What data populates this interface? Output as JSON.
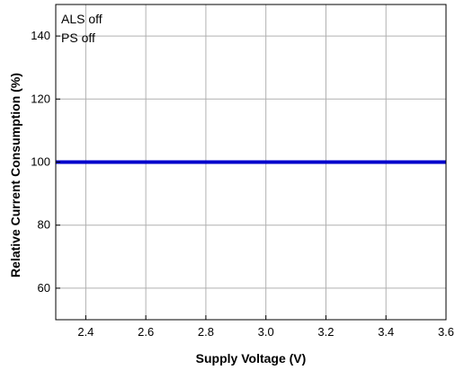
{
  "chart_data": {
    "type": "line",
    "title": "",
    "xlabel": "Supply Voltage (V)",
    "ylabel": "Relative Current Consumption (%)",
    "xlim": [
      2.3,
      3.6
    ],
    "ylim": [
      50,
      150
    ],
    "x_ticks": [
      2.4,
      2.6,
      2.8,
      3.0,
      3.2,
      3.4,
      3.6
    ],
    "x_tick_labels": [
      "2.4",
      "2.6",
      "2.8",
      "3.0",
      "3.2",
      "3.4",
      "3.6"
    ],
    "y_ticks": [
      60,
      80,
      100,
      120,
      140
    ],
    "y_tick_labels": [
      "60",
      "80",
      "100",
      "120",
      "140"
    ],
    "grid": true,
    "annotations": [
      "ALS off",
      "PS off"
    ],
    "series": [
      {
        "color": "#0000cc",
        "x": [
          2.3,
          3.6
        ],
        "y": [
          100,
          100
        ]
      }
    ]
  }
}
